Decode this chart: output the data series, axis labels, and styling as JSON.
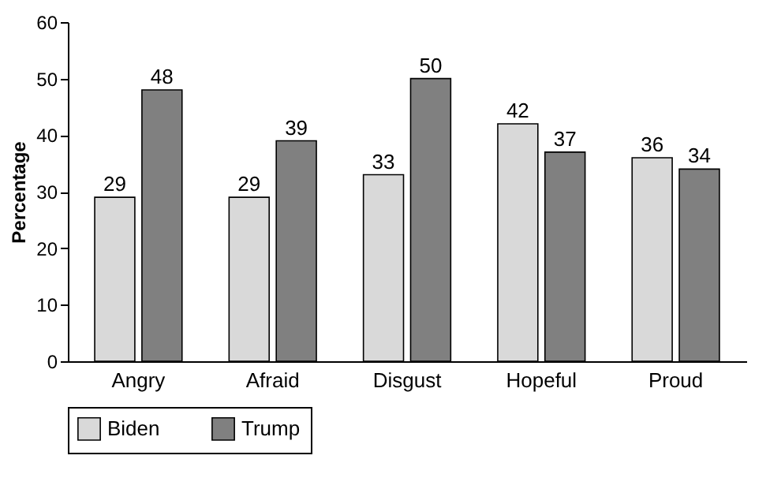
{
  "chart_data": {
    "type": "bar",
    "ylabel": "Percentage",
    "categories": [
      "Angry",
      "Afraid",
      "Disgust",
      "Hopeful",
      "Proud"
    ],
    "series": [
      {
        "name": "Biden",
        "color": "#d9d9d9",
        "values": [
          29,
          29,
          33,
          42,
          36
        ]
      },
      {
        "name": "Trump",
        "color": "#808080",
        "values": [
          48,
          39,
          50,
          37,
          34
        ]
      }
    ],
    "ylim": [
      0,
      60
    ],
    "yticks": [
      0,
      10,
      20,
      30,
      40,
      50,
      60
    ],
    "data_labels": true,
    "legend": "bottom",
    "grid": false
  }
}
